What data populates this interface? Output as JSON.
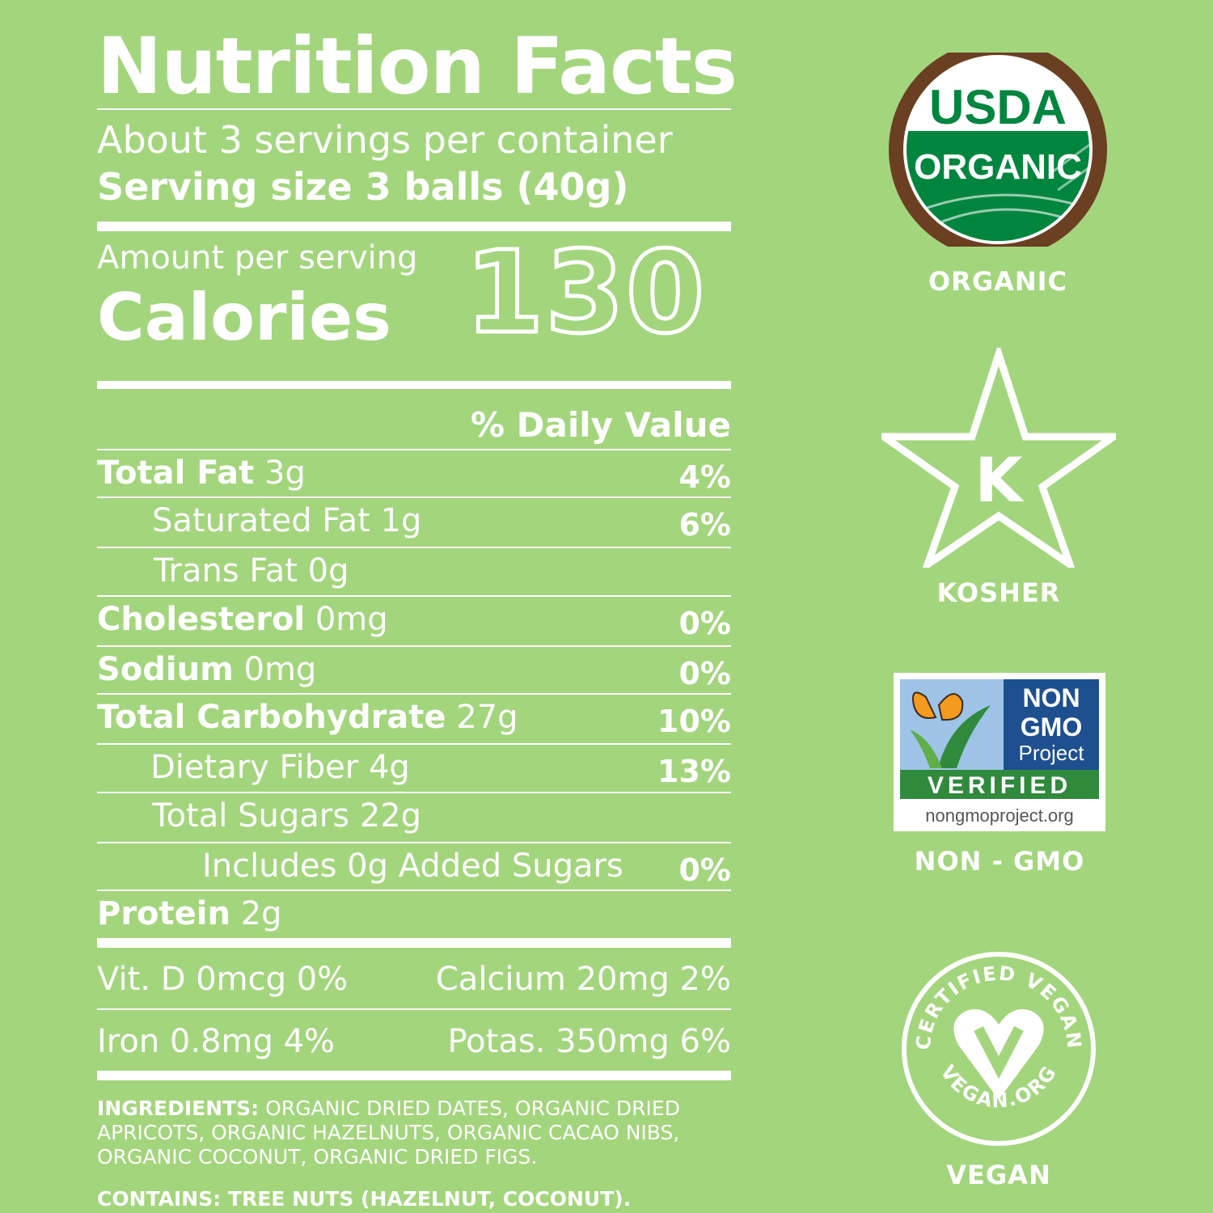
{
  "title": "Nutrition Facts",
  "servings_per_container": "About 3 servings per container",
  "serving_size": "Serving size 3 balls (40g)",
  "amount_per_serving": "Amount per serving",
  "calories_label": "Calories",
  "calories_value": "130",
  "daily_value_header": "% Daily Value",
  "nutrients": [
    {
      "name": "Total Fat",
      "amount": "3g",
      "dv": "4%"
    },
    {
      "name": "Saturated Fat",
      "amount": "1g",
      "dv": "6%"
    },
    {
      "name": "Trans Fat",
      "amount": "0g",
      "dv": ""
    },
    {
      "name": "Cholesterol",
      "amount": "0mg",
      "dv": "0%"
    },
    {
      "name": "Sodium",
      "amount": "0mg",
      "dv": "0%"
    },
    {
      "name": "Total Carbohydrate",
      "amount": "27g",
      "dv": "10%"
    },
    {
      "name": "Dietary Fiber",
      "amount": "4g",
      "dv": "13%"
    },
    {
      "name": "Total Sugars",
      "amount": "22g",
      "dv": ""
    },
    {
      "name": "Includes 0g Added Sugars",
      "amount": "",
      "dv": "0%"
    },
    {
      "name": "Protein",
      "amount": "2g",
      "dv": ""
    }
  ],
  "vitamins": [
    {
      "left": "Vit. D 0mcg 0%",
      "right": "Calcium 20mg 2%"
    },
    {
      "left": "Iron 0.8mg 4%",
      "right": "Potas. 350mg 6%"
    }
  ],
  "ingredients_label": "INGREDIENTS:",
  "ingredients_lines": [
    "ORGANIC DRIED DATES, ORGANIC DRIED",
    "APRICOTS, ORGANIC HAZELNUTS, ORGANIC CACAO NIBS,",
    "ORGANIC COCONUT, ORGANIC DRIED FIGS."
  ],
  "contains": "CONTAINS: TREE NUTS (HAZELNUT, COCONUT).",
  "certifications": {
    "organic": {
      "label": "ORGANIC",
      "logo_text_top": "USDA",
      "logo_text_band": "ORGANIC",
      "brand_green": "#00853f",
      "ring_brown": "#6b3f22"
    },
    "kosher": {
      "label": "KOSHER",
      "logo_letter": "K"
    },
    "nongmo": {
      "label": "NON - GMO",
      "logo_line1": "NON",
      "logo_line2": "GMO",
      "logo_line3": "Project",
      "logo_verified": "VERIFIED",
      "logo_url": "nongmoproject.org",
      "brand_blue": "#1e4f8f",
      "brand_green": "#2f8a3c",
      "brand_orange": "#f39a1f"
    },
    "vegan": {
      "label": "VEGAN",
      "ring_top": "CERTIFIED VEGAN",
      "ring_bottom": "VEGAN.ORG"
    }
  }
}
